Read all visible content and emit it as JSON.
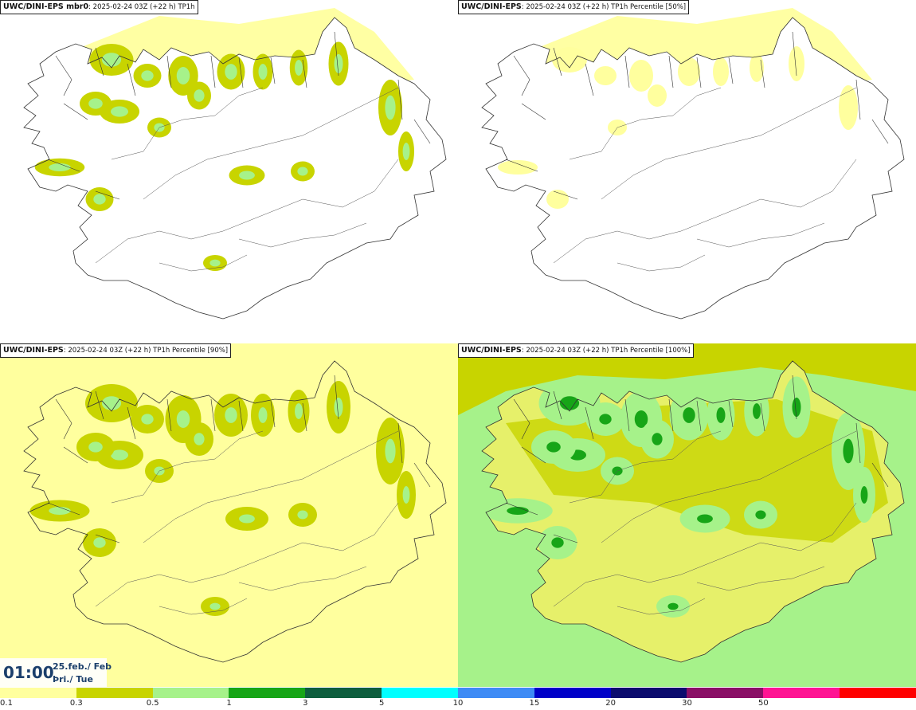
{
  "panels": [
    {
      "model": "UWC/DINI-EPS mbr0",
      "details": ": 2025-02-24 03Z (+22 h) TP1h",
      "level": 1,
      "color": "#ffff9e"
    },
    {
      "model": "UWC/DINI-EPS",
      "details": ": 2025-02-24 03Z (+22 h) TP1h Percentile [50%]",
      "level": 0,
      "color": "#ffff9e"
    },
    {
      "model": "UWC/DINI-EPS",
      "details": ": 2025-02-24 03Z (+22 h) TP1h Percentile [90%]",
      "level": 2,
      "color": "#ffff9e"
    },
    {
      "model": "UWC/DINI-EPS",
      "details": ": 2025-02-24 03Z (+22 h) TP1h Percentile [100%]",
      "level": 3,
      "color": "#c8d400"
    }
  ],
  "time": {
    "clock": "01:00",
    "date": "25.feb./ Feb",
    "day": "Þri./ Tue"
  },
  "legend": {
    "ticks": [
      "0.1",
      "0.3",
      "0.5",
      "1",
      "3",
      "5",
      "10",
      "15",
      "20",
      "30",
      "50"
    ],
    "colors": [
      "#ffff9e",
      "#c8d400",
      "#a6f28a",
      "#17a517",
      "#0e5e3e",
      "#00ffff",
      "#3e8bf5",
      "#0000c8",
      "#0b0b6e",
      "#8a0f66",
      "#ff1493",
      "#ff0000"
    ]
  }
}
